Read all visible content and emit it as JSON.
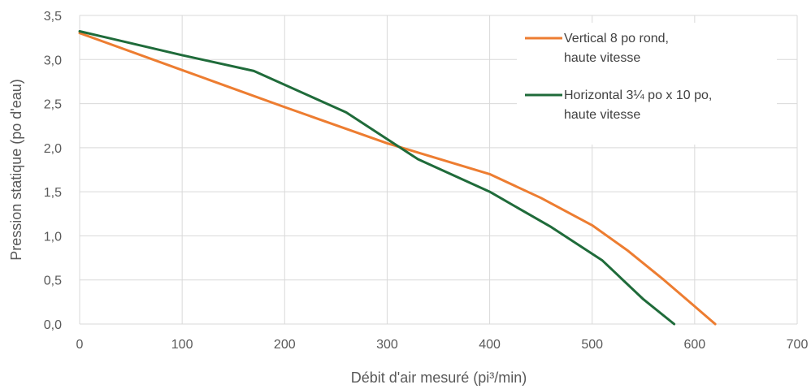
{
  "chart_data": {
    "type": "line",
    "title": "",
    "xlabel": "Débit d'air mesuré (pi³/min)",
    "ylabel": "Pression statique (po d'eau)",
    "xlim": [
      0,
      700
    ],
    "ylim": [
      0,
      3.5
    ],
    "xticks": [
      0,
      100,
      200,
      300,
      400,
      500,
      600,
      700
    ],
    "xtick_labels": [
      "0",
      "100",
      "200",
      "300",
      "400",
      "500",
      "600",
      "700"
    ],
    "yticks": [
      0,
      0.5,
      1.0,
      1.5,
      2.0,
      2.5,
      3.0,
      3.5
    ],
    "ytick_labels": [
      "0,0",
      "0,5",
      "1,0",
      "1,5",
      "2,0",
      "2,5",
      "3,0",
      "3,5"
    ],
    "grid": true,
    "legend_position": "top-right",
    "series": [
      {
        "name_lines": [
          "Vertical 8 po rond,",
          "haute vitesse"
        ],
        "color": "#ed7d31",
        "x": [
          0,
          100,
          200,
          300,
          400,
          450,
          500,
          535,
          570,
          600,
          620
        ],
        "y": [
          3.3,
          2.88,
          2.46,
          2.05,
          1.7,
          1.43,
          1.12,
          0.83,
          0.5,
          0.2,
          0.0
        ]
      },
      {
        "name_lines": [
          "Horizontal 3¼ po x 10 po,",
          "haute vitesse"
        ],
        "color": "#1f6b3a",
        "x": [
          0,
          100,
          170,
          260,
          330,
          400,
          460,
          510,
          550,
          580
        ],
        "y": [
          3.32,
          3.05,
          2.87,
          2.4,
          1.87,
          1.5,
          1.1,
          0.72,
          0.28,
          0.0
        ]
      }
    ]
  }
}
